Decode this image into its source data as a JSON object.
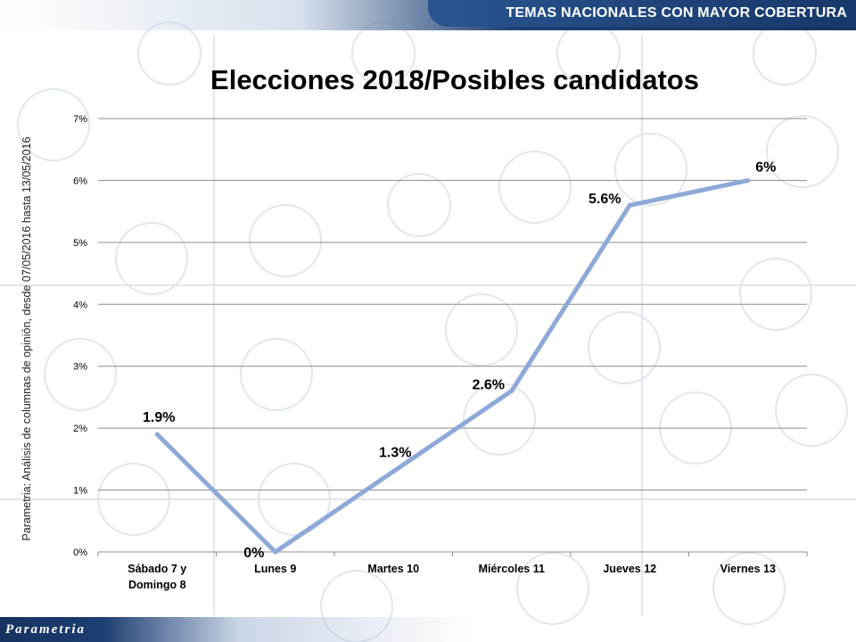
{
  "header": {
    "title": "TEMAS NACIONALES CON MAYOR COBERTURA"
  },
  "side_note": "Parametria: Análisis de columnas de opinión, desde 07/05/2016 hasta  13/05/2016",
  "footer": {
    "logo_text": "Parametria"
  },
  "colors": {
    "line": "#8EA9D8",
    "grid": "#8c8c8c",
    "header_dark": "#17386A",
    "text": "#000000"
  },
  "chart_data": {
    "type": "line",
    "title": "Elecciones 2018/Posibles candidatos",
    "categories": [
      "Sábado 7 y\nDomingo 8",
      "Lunes 9",
      "Martes 10",
      "Miércoles 11",
      "Jueves 12",
      "Viernes 13"
    ],
    "series": [
      {
        "values": [
          1.9,
          0,
          1.3,
          2.6,
          5.6,
          6
        ],
        "labels": [
          "1.9%",
          "0%",
          "1.3%",
          "2.6%",
          "5.6%",
          "6%"
        ]
      }
    ],
    "y_ticks": [
      "0%",
      "1%",
      "2%",
      "3%",
      "4%",
      "5%",
      "6%",
      "7%"
    ],
    "ylim": [
      0,
      7
    ],
    "grid": true,
    "legend": "none"
  }
}
